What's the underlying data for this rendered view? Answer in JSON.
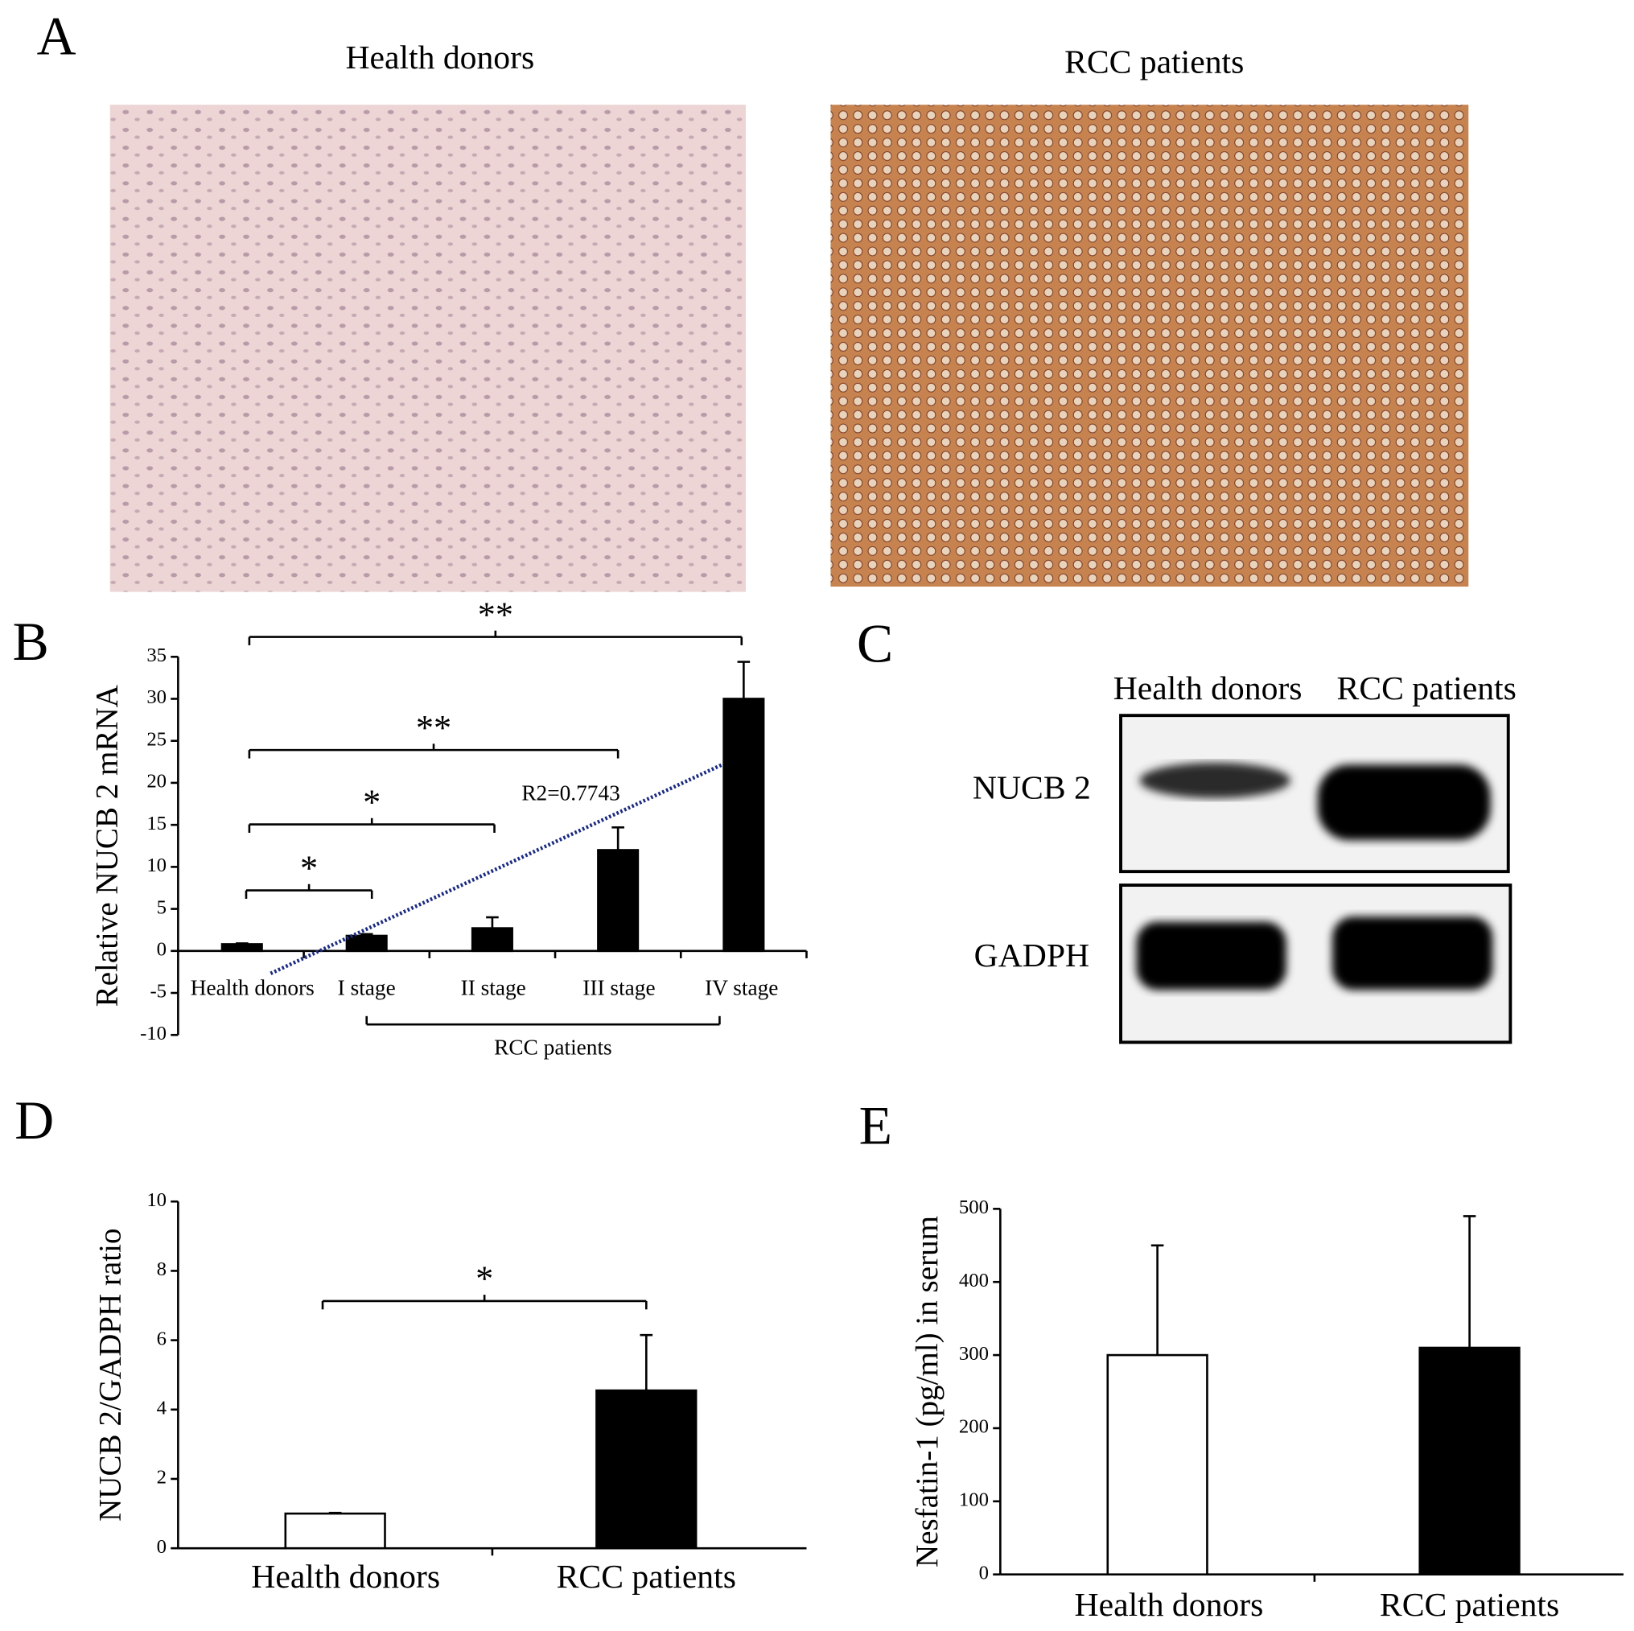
{
  "panel_labels": [
    "A",
    "B",
    "C",
    "D",
    "E"
  ],
  "images": {
    "titles": [
      "Health donors",
      "RCC patients"
    ]
  },
  "blot": {
    "lanes": [
      "Health donors",
      "RCC patients"
    ],
    "rows": [
      "NUCB 2",
      "GADPH"
    ]
  },
  "chart_data": [
    {
      "type": "bar",
      "ylabel": "Relative NUCB 2 mRNA",
      "categories": [
        "Health donors",
        "I stage",
        "II stage",
        "III stage",
        "IV stage"
      ],
      "values": [
        0.8,
        1.8,
        2.7,
        12,
        30
      ],
      "errors": [
        0.1,
        0.2,
        1.3,
        2.7,
        4.4
      ],
      "colors": [
        "#000000",
        "#000000",
        "#000000",
        "#000000",
        "#000000"
      ],
      "ylim": [
        -10,
        35
      ],
      "yticks": [
        -10,
        -5,
        0,
        5,
        10,
        15,
        20,
        25,
        30,
        35
      ],
      "annotations": [
        "**",
        "**",
        "*",
        "*"
      ],
      "group_label": "RCC patients",
      "trendline_label": "R2=0.7743",
      "trendline_color": "#1a2a80"
    },
    {
      "type": "bar",
      "ylabel": "NUCB 2/GADPH ratio",
      "categories": [
        "Health donors",
        "RCC patients"
      ],
      "values": [
        1.0,
        4.55
      ],
      "errors": [
        0.02,
        1.6
      ],
      "colors": [
        "#ffffff",
        "#000000"
      ],
      "ylim": [
        0,
        10
      ],
      "yticks": [
        0,
        2,
        4,
        6,
        8,
        10
      ],
      "annotations": [
        "*"
      ]
    },
    {
      "type": "bar",
      "ylabel": "Nesfatin-1 (pg/ml) in serum",
      "categories": [
        "Health donors",
        "RCC patients"
      ],
      "values": [
        300,
        310
      ],
      "errors": [
        150,
        180
      ],
      "colors": [
        "#ffffff",
        "#000000"
      ],
      "ylim": [
        0,
        500
      ],
      "yticks": [
        0,
        100,
        200,
        300,
        400,
        500
      ]
    }
  ]
}
